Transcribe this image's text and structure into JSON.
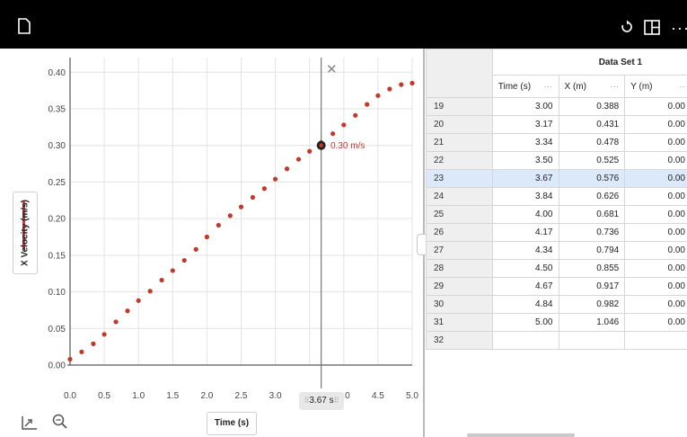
{
  "chart_data": {
    "type": "scatter",
    "xlabel": "Time (s)",
    "ylabel": "X Velocity (m/s)",
    "xlim": [
      0,
      5.0
    ],
    "ylim": [
      0,
      0.42
    ],
    "grid": true,
    "x_ticks": [
      "0.0",
      "0.5",
      "1.0",
      "1.5",
      "2.0",
      "2.5",
      "3.0",
      "3.5",
      "4.0",
      "4.5",
      "5.0"
    ],
    "y_ticks": [
      "0.00",
      "0.05",
      "0.10",
      "0.15",
      "0.20",
      "0.25",
      "0.30",
      "0.35",
      "0.40"
    ],
    "series": [
      {
        "color": "#c0392b",
        "points": [
          [
            0.0,
            0.008
          ],
          [
            0.17,
            0.018
          ],
          [
            0.34,
            0.029
          ],
          [
            0.5,
            0.042
          ],
          [
            0.67,
            0.059
          ],
          [
            0.84,
            0.074
          ],
          [
            1.0,
            0.088
          ],
          [
            1.17,
            0.101
          ],
          [
            1.34,
            0.116
          ],
          [
            1.5,
            0.129
          ],
          [
            1.67,
            0.143
          ],
          [
            1.84,
            0.158
          ],
          [
            2.0,
            0.175
          ],
          [
            2.17,
            0.191
          ],
          [
            2.34,
            0.204
          ],
          [
            2.5,
            0.216
          ],
          [
            2.67,
            0.229
          ],
          [
            2.84,
            0.241
          ],
          [
            3.0,
            0.254
          ],
          [
            3.17,
            0.268
          ],
          [
            3.34,
            0.281
          ],
          [
            3.5,
            0.292
          ],
          [
            3.67,
            0.304
          ],
          [
            3.84,
            0.316
          ],
          [
            4.0,
            0.328
          ],
          [
            4.17,
            0.341
          ],
          [
            4.34,
            0.356
          ],
          [
            4.5,
            0.368
          ],
          [
            4.67,
            0.377
          ],
          [
            4.84,
            0.383
          ],
          [
            5.0,
            0.385
          ]
        ]
      }
    ],
    "cursor": {
      "x": 3.67,
      "y": 0.3,
      "value_label": "0.30 m/s",
      "time_label": "3.67 s"
    }
  },
  "toolbar": {
    "more_label": "···"
  },
  "table": {
    "dataset_title": "Data Set 1",
    "columns": [
      {
        "label": "Time (s)",
        "menu": "···"
      },
      {
        "label": "X (m)",
        "menu": "···"
      },
      {
        "label": "Y (m)",
        "menu": "··"
      }
    ],
    "rows": [
      {
        "index": "19",
        "time": "3.00",
        "x": "0.388",
        "y": "0.00"
      },
      {
        "index": "20",
        "time": "3.17",
        "x": "0.431",
        "y": "0.00"
      },
      {
        "index": "21",
        "time": "3.34",
        "x": "0.478",
        "y": "0.00"
      },
      {
        "index": "22",
        "time": "3.50",
        "x": "0.525",
        "y": "0.00"
      },
      {
        "index": "23",
        "time": "3.67",
        "x": "0.576",
        "y": "0.00"
      },
      {
        "index": "24",
        "time": "3.84",
        "x": "0.626",
        "y": "0.00"
      },
      {
        "index": "25",
        "time": "4.00",
        "x": "0.681",
        "y": "0.00"
      },
      {
        "index": "26",
        "time": "4.17",
        "x": "0.736",
        "y": "0.00"
      },
      {
        "index": "27",
        "time": "4.34",
        "x": "0.794",
        "y": "0.00"
      },
      {
        "index": "28",
        "time": "4.50",
        "x": "0.855",
        "y": "0.00"
      },
      {
        "index": "29",
        "time": "4.67",
        "x": "0.917",
        "y": "0.00"
      },
      {
        "index": "30",
        "time": "4.84",
        "x": "0.982",
        "y": "0.00"
      },
      {
        "index": "31",
        "time": "5.00",
        "x": "1.046",
        "y": "0.00"
      },
      {
        "index": "32",
        "time": "",
        "x": "",
        "y": ""
      }
    ],
    "selected_index": "23"
  },
  "colors": {
    "accent": "#c0392b",
    "selected_row": "#dce9fb",
    "top_bar": "#000000"
  },
  "icons": [
    "document-icon",
    "reset-icon",
    "layout-icon",
    "more-icon",
    "close-icon",
    "autoscale-icon",
    "zoom-icon"
  ]
}
